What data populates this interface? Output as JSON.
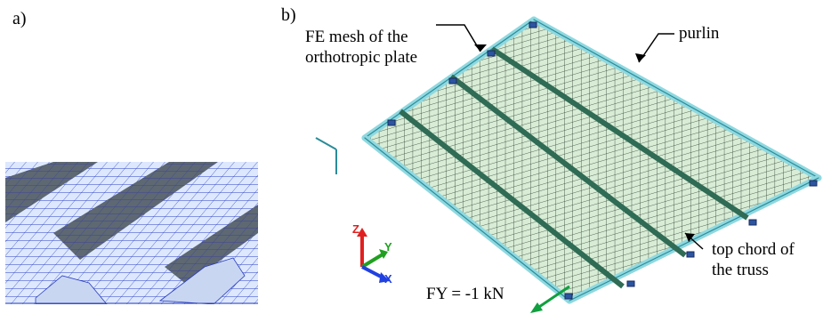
{
  "panel_a": {
    "label": "a)"
  },
  "panel_b": {
    "label": "b)",
    "annotations": {
      "fe_mesh_line1": "FE mesh of the",
      "fe_mesh_line2": "orthotropic plate",
      "purlin": "purlin",
      "top_chord_line1": "top chord of",
      "top_chord_line2": "the truss",
      "force": "FY = -1 kN"
    },
    "axes": {
      "z": "Z",
      "y": "Y",
      "x": "X"
    }
  },
  "colors": {
    "mesh_light": "#dfe9ff",
    "mesh_line": "#2a3db8",
    "rib_dark": "#5e6a73",
    "steel": "#8fd8e0",
    "steel_edge": "#1f7f8c",
    "plate": "#d9ecd9",
    "axis_z": "#e02020",
    "axis_y": "#20a020",
    "axis_x": "#2040e0",
    "force": "#10a040"
  }
}
